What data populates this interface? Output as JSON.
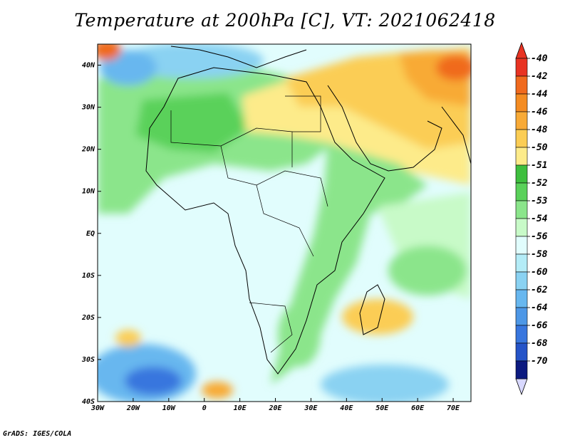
{
  "title": "Temperature at 200hPa [C], VT: 2021062418",
  "footer": "GrADS: IGES/COLA",
  "map": {
    "lon_range": [
      -30,
      75
    ],
    "lat_range": [
      -40,
      45
    ],
    "lat_ticks": [
      {
        "value": 40,
        "label": "40N"
      },
      {
        "value": 30,
        "label": "30N"
      },
      {
        "value": 20,
        "label": "20N"
      },
      {
        "value": 10,
        "label": "10N"
      },
      {
        "value": 0,
        "label": "EQ"
      },
      {
        "value": -10,
        "label": "10S"
      },
      {
        "value": -20,
        "label": "20S"
      },
      {
        "value": -30,
        "label": "30S"
      },
      {
        "value": -40,
        "label": "40S"
      }
    ],
    "lon_ticks": [
      {
        "value": -30,
        "label": "30W"
      },
      {
        "value": -20,
        "label": "20W"
      },
      {
        "value": -10,
        "label": "10W"
      },
      {
        "value": 0,
        "label": "0"
      },
      {
        "value": 10,
        "label": "10E"
      },
      {
        "value": 20,
        "label": "20E"
      },
      {
        "value": 30,
        "label": "30E"
      },
      {
        "value": 40,
        "label": "40E"
      },
      {
        "value": 50,
        "label": "50E"
      },
      {
        "value": 60,
        "label": "60E"
      },
      {
        "value": 70,
        "label": "70E"
      }
    ],
    "background_color": "#e1fdfd"
  },
  "colorbar": {
    "top_arrow_color": "#e83322",
    "bottom_arrow_color": "#d8d8ff",
    "levels": [
      {
        "label": "-40",
        "color": "#e83322"
      },
      {
        "label": "-42",
        "color": "#f06a1e"
      },
      {
        "label": "-44",
        "color": "#f48c22"
      },
      {
        "label": "-46",
        "color": "#f8aa36"
      },
      {
        "label": "-48",
        "color": "#fbcd54"
      },
      {
        "label": "-50",
        "color": "#fdeb8a"
      },
      {
        "label": "-51",
        "color": "#3ebf3e"
      },
      {
        "label": "-52",
        "color": "#5ad15a"
      },
      {
        "label": "-53",
        "color": "#8be58b"
      },
      {
        "label": "-54",
        "color": "#c8fac8"
      },
      {
        "label": "-56",
        "color": "#e1fdfd"
      },
      {
        "label": "-58",
        "color": "#b4ecf7"
      },
      {
        "label": "-60",
        "color": "#8ad2f2"
      },
      {
        "label": "-62",
        "color": "#67b7ef"
      },
      {
        "label": "-64",
        "color": "#4d97e6"
      },
      {
        "label": "-66",
        "color": "#3876de"
      },
      {
        "label": "-68",
        "color": "#2554c8"
      },
      {
        "label": "-70",
        "color": "#0c1a80"
      }
    ]
  }
}
